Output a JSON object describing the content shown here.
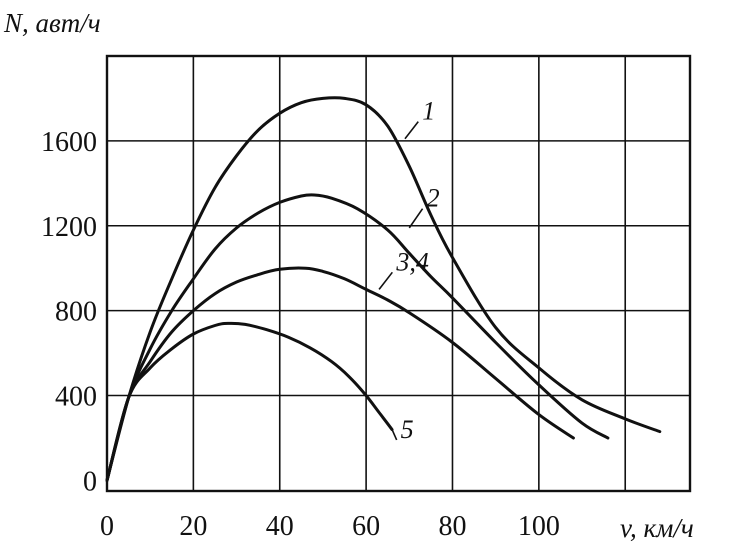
{
  "chart_data": {
    "type": "line",
    "xlabel": "v, км/ч",
    "ylabel": "N, авт/ч",
    "xlim": [
      0,
      135
    ],
    "ylim": [
      -50,
      2000
    ],
    "x_ticks": [
      0,
      20,
      40,
      60,
      80,
      100
    ],
    "x_grid": [
      0,
      20,
      40,
      60,
      80,
      100,
      120
    ],
    "y_ticks": [
      0,
      400,
      800,
      1200,
      1600
    ],
    "grid": true,
    "series": [
      {
        "name": "1",
        "points": [
          [
            0,
            0
          ],
          [
            5,
            390
          ],
          [
            10,
            700
          ],
          [
            15,
            950
          ],
          [
            20,
            1180
          ],
          [
            25,
            1380
          ],
          [
            30,
            1530
          ],
          [
            35,
            1650
          ],
          [
            40,
            1730
          ],
          [
            45,
            1780
          ],
          [
            50,
            1800
          ],
          [
            55,
            1800
          ],
          [
            60,
            1770
          ],
          [
            65,
            1670
          ],
          [
            70,
            1480
          ],
          [
            75,
            1250
          ],
          [
            80,
            1050
          ],
          [
            90,
            720
          ],
          [
            100,
            530
          ],
          [
            110,
            380
          ],
          [
            120,
            290
          ],
          [
            128,
            230
          ]
        ]
      },
      {
        "name": "2",
        "points": [
          [
            0,
            0
          ],
          [
            5,
            390
          ],
          [
            10,
            620
          ],
          [
            15,
            800
          ],
          [
            20,
            950
          ],
          [
            25,
            1090
          ],
          [
            30,
            1190
          ],
          [
            35,
            1260
          ],
          [
            40,
            1310
          ],
          [
            45,
            1340
          ],
          [
            48,
            1345
          ],
          [
            52,
            1330
          ],
          [
            58,
            1280
          ],
          [
            65,
            1180
          ],
          [
            70,
            1070
          ],
          [
            75,
            960
          ],
          [
            80,
            860
          ],
          [
            90,
            650
          ],
          [
            100,
            450
          ],
          [
            110,
            270
          ],
          [
            116,
            200
          ]
        ]
      },
      {
        "name": "3,4",
        "points": [
          [
            0,
            0
          ],
          [
            5,
            390
          ],
          [
            10,
            560
          ],
          [
            15,
            700
          ],
          [
            20,
            800
          ],
          [
            25,
            880
          ],
          [
            30,
            935
          ],
          [
            35,
            970
          ],
          [
            40,
            995
          ],
          [
            46,
            1000
          ],
          [
            50,
            985
          ],
          [
            55,
            950
          ],
          [
            60,
            900
          ],
          [
            65,
            850
          ],
          [
            70,
            790
          ],
          [
            80,
            650
          ],
          [
            90,
            480
          ],
          [
            100,
            310
          ],
          [
            108,
            200
          ]
        ]
      },
      {
        "name": "5",
        "points": [
          [
            0,
            0
          ],
          [
            5,
            390
          ],
          [
            10,
            530
          ],
          [
            15,
            620
          ],
          [
            20,
            690
          ],
          [
            25,
            730
          ],
          [
            28,
            740
          ],
          [
            32,
            735
          ],
          [
            37,
            710
          ],
          [
            42,
            675
          ],
          [
            47,
            625
          ],
          [
            52,
            560
          ],
          [
            56,
            490
          ],
          [
            60,
            400
          ],
          [
            63,
            320
          ],
          [
            66,
            240
          ]
        ]
      }
    ],
    "curve_labels": [
      {
        "series": "1",
        "text": "1",
        "at": [
          73,
          1700
        ],
        "anchor": [
          69,
          1610
        ]
      },
      {
        "series": "2",
        "text": "2",
        "at": [
          74,
          1290
        ],
        "anchor": [
          70,
          1190
        ]
      },
      {
        "series": "3,4",
        "text": "3,4",
        "at": [
          67,
          990
        ],
        "anchor": [
          63,
          900
        ]
      },
      {
        "series": "5",
        "text": "5",
        "at": [
          68,
          200
        ],
        "anchor": [
          66,
          240
        ]
      }
    ]
  }
}
